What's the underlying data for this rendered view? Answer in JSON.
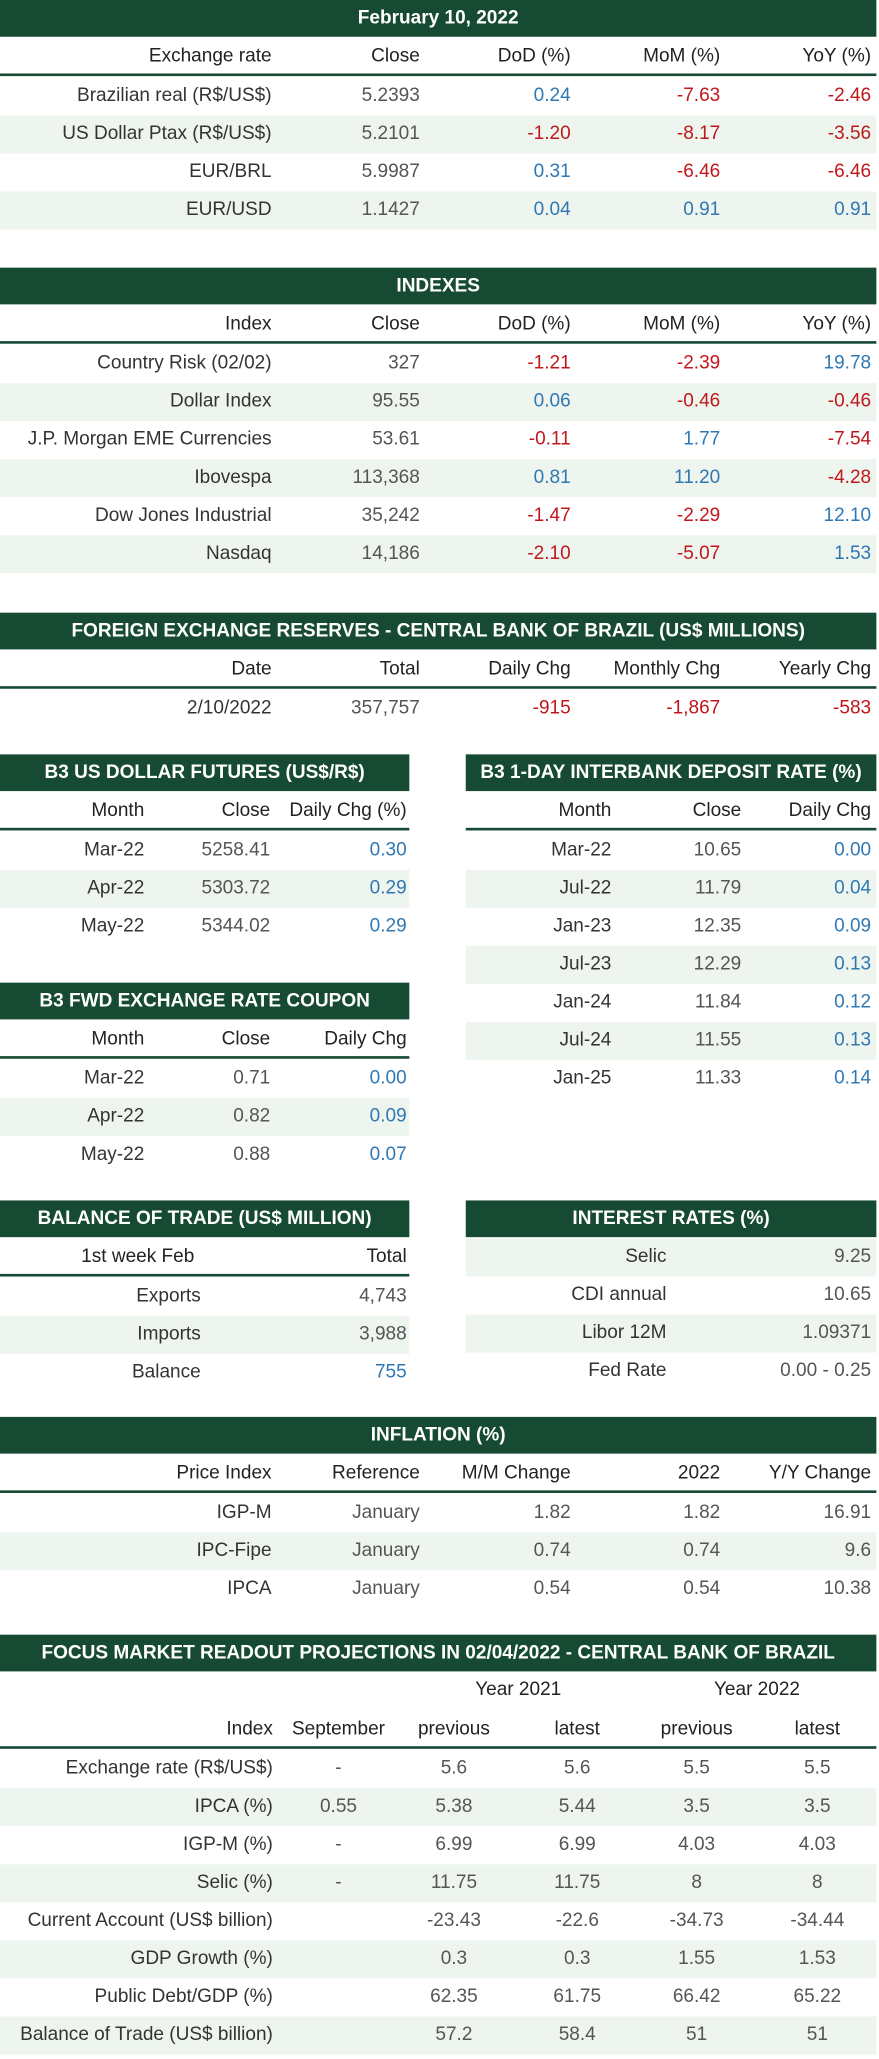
{
  "exchange_rate": {
    "title": "February 10, 2022",
    "columns": [
      "Exchange rate",
      "Close",
      "DoD (%)",
      "MoM (%)",
      "YoY (%)"
    ],
    "rows": [
      [
        "Brazilian real (R$/US$)",
        "5.2393",
        "0.24",
        "-7.63",
        "-2.46"
      ],
      [
        "US Dollar Ptax (R$/US$)",
        "5.2101",
        "-1.20",
        "-8.17",
        "-3.56"
      ],
      [
        "EUR/BRL",
        "5.9987",
        "0.31",
        "-6.46",
        "-6.46"
      ],
      [
        "EUR/USD",
        "1.1427",
        "0.04",
        "0.91",
        "0.91"
      ]
    ]
  },
  "indexes": {
    "title": "INDEXES",
    "columns": [
      "Index",
      "Close",
      "DoD (%)",
      "MoM (%)",
      "YoY (%)"
    ],
    "rows": [
      [
        "Country Risk (02/02)",
        "327",
        "-1.21",
        "-2.39",
        "19.78"
      ],
      [
        "Dollar Index",
        "95.55",
        "0.06",
        "-0.46",
        "-0.46"
      ],
      [
        "J.P. Morgan EME Currencies",
        "53.61",
        "-0.11",
        "1.77",
        "-7.54"
      ],
      [
        "Ibovespa",
        "113,368",
        "0.81",
        "11.20",
        "-4.28"
      ],
      [
        "Dow Jones Industrial",
        "35,242",
        "-1.47",
        "-2.29",
        "12.10"
      ],
      [
        "Nasdaq",
        "14,186",
        "-2.10",
        "-5.07",
        "1.53"
      ]
    ]
  },
  "fx_reserves": {
    "title": "FOREIGN EXCHANGE RESERVES - CENTRAL BANK OF BRAZIL (US$ MILLIONS)",
    "columns": [
      "Date",
      "Total",
      "Daily Chg",
      "Monthly Chg",
      "Yearly Chg"
    ],
    "rows": [
      [
        "2/10/2022",
        "357,757",
        "-915",
        "-1,867",
        "-583"
      ]
    ]
  },
  "usd_futures": {
    "title": "B3 US DOLLAR FUTURES (US$/R$)",
    "columns": [
      "Month",
      "Close",
      "Daily Chg (%)"
    ],
    "rows": [
      [
        "Mar-22",
        "5258.41",
        "0.30"
      ],
      [
        "Apr-22",
        "5303.72",
        "0.29"
      ],
      [
        "May-22",
        "5344.02",
        "0.29"
      ]
    ]
  },
  "interbank_rate": {
    "title": "B3 1-DAY INTERBANK DEPOSIT RATE (%)",
    "columns": [
      "Month",
      "Close",
      "Daily Chg"
    ],
    "rows": [
      [
        "Mar-22",
        "10.65",
        "0.00"
      ],
      [
        "Jul-22",
        "11.79",
        "0.04"
      ],
      [
        "Jan-23",
        "12.35",
        "0.09"
      ],
      [
        "Jul-23",
        "12.29",
        "0.13"
      ],
      [
        "Jan-24",
        "11.84",
        "0.12"
      ],
      [
        "Jul-24",
        "11.55",
        "0.13"
      ],
      [
        "Jan-25",
        "11.33",
        "0.14"
      ]
    ]
  },
  "fwd_coupon": {
    "title": "B3 FWD EXCHANGE RATE COUPON",
    "columns": [
      "Month",
      "Close",
      "Daily Chg"
    ],
    "rows": [
      [
        "Mar-22",
        "0.71",
        "0.00"
      ],
      [
        "Apr-22",
        "0.82",
        "0.09"
      ],
      [
        "May-22",
        "0.88",
        "0.07"
      ]
    ]
  },
  "balance_of_trade": {
    "title": "BALANCE OF TRADE (US$ MILLION)",
    "columns": [
      "1st week Feb",
      "Total"
    ],
    "rows": [
      [
        "Exports",
        "4,743"
      ],
      [
        "Imports",
        "3,988"
      ],
      [
        "Balance",
        "755"
      ]
    ]
  },
  "interest_rates": {
    "title": "INTEREST RATES (%)",
    "rows": [
      [
        "Selic",
        "9.25"
      ],
      [
        "CDI annual",
        "10.65"
      ],
      [
        "Libor 12M",
        "1.09371"
      ],
      [
        "Fed Rate",
        "0.00 - 0.25"
      ]
    ]
  },
  "inflation": {
    "title": "INFLATION (%)",
    "columns": [
      "Price Index",
      "Reference",
      "M/M Change",
      "2022",
      "Y/Y Change"
    ],
    "rows": [
      [
        "IGP-M",
        "January",
        "1.82",
        "1.82",
        "16.91"
      ],
      [
        "IPC-Fipe",
        "January",
        "0.74",
        "0.74",
        "9.6"
      ],
      [
        "IPCA",
        "January",
        "0.54",
        "0.54",
        "10.38"
      ]
    ]
  },
  "focus": {
    "title": "FOCUS MARKET READOUT PROJECTIONS IN 02/04/2022 - CENTRAL BANK OF BRAZIL",
    "groups": [
      "Year 2021",
      "Year 2022"
    ],
    "columns": [
      "Index",
      "September",
      "previous",
      "latest",
      "previous",
      "latest"
    ],
    "rows": [
      [
        "Exchange rate (R$/US$)",
        "-",
        "5.6",
        "5.6",
        "5.5",
        "5.5"
      ],
      [
        "IPCA (%)",
        "0.55",
        "5.38",
        "5.44",
        "3.5",
        "3.5"
      ],
      [
        "IGP-M (%)",
        "-",
        "6.99",
        "6.99",
        "4.03",
        "4.03"
      ],
      [
        "Selic (%)",
        "-",
        "11.75",
        "11.75",
        "8",
        "8"
      ],
      [
        "Current Account (US$ billion)",
        "",
        "-23.43",
        "-22.6",
        "-34.73",
        "-34.44"
      ],
      [
        "GDP Growth (%)",
        "",
        "0.3",
        "0.3",
        "1.55",
        "1.53"
      ],
      [
        "Public Debt/GDP (%)",
        "",
        "62.35",
        "61.75",
        "66.42",
        "65.22"
      ],
      [
        "Balance of Trade (US$ billion)",
        "",
        "57.2",
        "58.4",
        "51",
        "51"
      ]
    ]
  }
}
